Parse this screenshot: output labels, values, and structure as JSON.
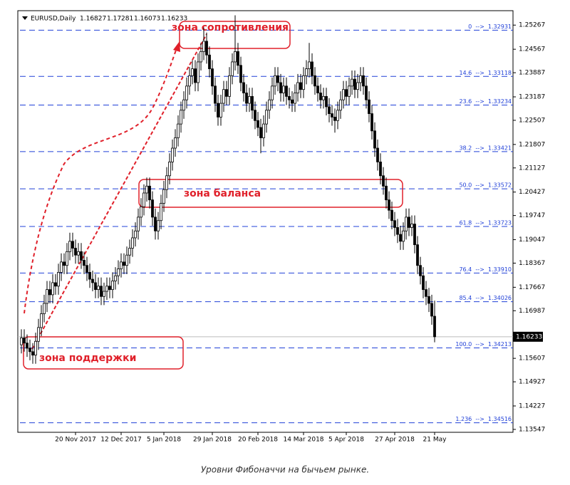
{
  "chart_data": {
    "type": "candlestick",
    "title": "EURUSD,Daily",
    "caption": "Уровни Фибоначчи на бычьем рынке.",
    "annotations": [
      "зона сопротивления",
      "зона баланса",
      "зона поддержки"
    ],
    "xlim": [
      -1.25,
      172.5
    ],
    "xticks": [
      {
        "value": 19,
        "label": "20 Nov 2017"
      },
      {
        "value": 35,
        "label": "12 Dec 2017"
      },
      {
        "value": 50,
        "label": "5 Jan 2018"
      },
      {
        "value": 67,
        "label": "29 Jan 2018"
      },
      {
        "value": 83,
        "label": "20 Feb 2018"
      },
      {
        "value": 99,
        "label": "14 Mar 2018"
      },
      {
        "value": 114,
        "label": "5 Apr 2018"
      },
      {
        "value": 131,
        "label": "27 Apr 2018"
      },
      {
        "value": 145,
        "label": "21 May"
      }
    ],
    "ylim": [
      1.13463,
      1.25685
    ],
    "yticks": [
      1.25267,
      1.24567,
      1.23887,
      1.23187,
      1.22507,
      1.21807,
      1.21127,
      1.20427,
      1.19747,
      1.19047,
      1.18367,
      1.17667,
      1.16987,
      1.15607,
      1.14927,
      1.14227,
      1.13547
    ],
    "fib_color": "#2040d8",
    "annotation_color": "#e0202a",
    "fib_levels": [
      {
        "value": 1.2512,
        "label": "0  -->  1.32931"
      },
      {
        "value": 1.2378,
        "label": "14.6  -->  1.33118"
      },
      {
        "value": 1.2295,
        "label": "23.6  -->  1.33234"
      },
      {
        "value": 1.216,
        "label": "38.2  -->  1.33421"
      },
      {
        "value": 1.2052,
        "label": "50.0  -->  1.33572"
      },
      {
        "value": 1.1943,
        "label": "61.8  -->  1.33723"
      },
      {
        "value": 1.1808,
        "label": "76.4  -->  1.33910"
      },
      {
        "value": 1.1725,
        "label": "85.4  -->  1.34026"
      },
      {
        "value": 1.1591,
        "label": "100.0  -->  1.34213"
      },
      {
        "value": 1.1374,
        "label": "1.236  -->  1.34516"
      }
    ],
    "open": [
      1.16,
      1.162,
      1.1605,
      1.159,
      1.158,
      1.157,
      1.161,
      1.165,
      1.169,
      1.172,
      1.176,
      1.1745,
      1.178,
      1.177,
      1.181,
      1.184,
      1.183,
      1.187,
      1.19,
      1.188,
      1.186,
      1.187,
      1.1845,
      1.183,
      1.181,
      1.179,
      1.178,
      1.176,
      1.177,
      1.174,
      1.1755,
      1.177,
      1.176,
      1.1785,
      1.18,
      1.182,
      1.184,
      1.183,
      1.186,
      1.188,
      1.191,
      1.193,
      1.197,
      1.2,
      1.204,
      1.206,
      1.202,
      1.197,
      1.193,
      1.196,
      1.201,
      1.205,
      1.209,
      1.213,
      1.217,
      1.22,
      1.224,
      1.228,
      1.231,
      1.235,
      1.238,
      1.24,
      1.236,
      1.242,
      1.245,
      1.248,
      1.244,
      1.24,
      1.235,
      1.23,
      1.226,
      1.23,
      1.234,
      1.232,
      1.238,
      1.242,
      1.245,
      1.241,
      1.236,
      1.233,
      1.23,
      1.232,
      1.228,
      1.225,
      1.223,
      1.22,
      1.224,
      1.228,
      1.231,
      1.235,
      1.238,
      1.236,
      1.233,
      1.235,
      1.232,
      1.231,
      1.23,
      1.233,
      1.236,
      1.234,
      1.238,
      1.24,
      1.242,
      1.238,
      1.235,
      1.233,
      1.231,
      1.232,
      1.229,
      1.227,
      1.226,
      1.225,
      1.228,
      1.231,
      1.234,
      1.232,
      1.235,
      1.237,
      1.234,
      1.236,
      1.238,
      1.235,
      1.231,
      1.227,
      1.222,
      1.217,
      1.213,
      1.209,
      1.206,
      1.202,
      1.199,
      1.196,
      1.194,
      1.192,
      1.19,
      1.193,
      1.197,
      1.194,
      1.195,
      1.189,
      1.183,
      1.18,
      1.176,
      1.174,
      1.172,
      1.16827
    ],
    "high": [
      1.1645,
      1.1645,
      1.163,
      1.1615,
      1.1605,
      1.1635,
      1.1675,
      1.1715,
      1.1745,
      1.1785,
      1.1785,
      1.1805,
      1.1805,
      1.1835,
      1.1865,
      1.1865,
      1.1895,
      1.1925,
      1.1925,
      1.1905,
      1.1895,
      1.1895,
      1.187,
      1.1855,
      1.1835,
      1.1815,
      1.1805,
      1.1795,
      1.1795,
      1.178,
      1.1795,
      1.1795,
      1.181,
      1.1825,
      1.1845,
      1.1865,
      1.1865,
      1.1885,
      1.1905,
      1.1935,
      1.1955,
      1.1995,
      1.2025,
      1.2065,
      1.2085,
      1.2085,
      1.2045,
      1.1995,
      1.1985,
      1.2035,
      1.2075,
      1.2115,
      1.2155,
      1.2195,
      1.2225,
      1.2265,
      1.2305,
      1.2335,
      1.2375,
      1.2405,
      1.2425,
      1.2425,
      1.2445,
      1.2475,
      1.252,
      1.2505,
      1.2465,
      1.2425,
      1.2375,
      1.2325,
      1.2325,
      1.2365,
      1.2365,
      1.2405,
      1.2445,
      1.2555,
      1.2475,
      1.2435,
      1.2385,
      1.2355,
      1.2345,
      1.2345,
      1.2305,
      1.2275,
      1.2255,
      1.2265,
      1.2305,
      1.2335,
      1.2375,
      1.2405,
      1.2405,
      1.2385,
      1.2375,
      1.2375,
      1.2345,
      1.2335,
      1.2355,
      1.2385,
      1.2385,
      1.2405,
      1.2425,
      1.2475,
      1.2445,
      1.2405,
      1.2375,
      1.2355,
      1.2345,
      1.2345,
      1.2315,
      1.2295,
      1.2285,
      1.2305,
      1.2335,
      1.2365,
      1.2365,
      1.2375,
      1.2395,
      1.2395,
      1.2385,
      1.2405,
      1.2405,
      1.2375,
      1.2335,
      1.2295,
      1.2245,
      1.2195,
      1.2155,
      1.2115,
      1.2085,
      1.2045,
      1.2015,
      1.1985,
      1.1965,
      1.1945,
      1.1955,
      1.1995,
      1.1995,
      1.1975,
      1.1975,
      1.1915,
      1.1855,
      1.1825,
      1.1785,
      1.1765,
      1.1745,
      1.17281
    ],
    "low": [
      1.1575,
      1.158,
      1.1565,
      1.1555,
      1.1545,
      1.1545,
      1.1585,
      1.1625,
      1.1665,
      1.1695,
      1.172,
      1.172,
      1.1745,
      1.1745,
      1.1785,
      1.1805,
      1.1805,
      1.1845,
      1.1855,
      1.1835,
      1.1835,
      1.182,
      1.1805,
      1.1785,
      1.1765,
      1.1755,
      1.1735,
      1.1735,
      1.1715,
      1.1715,
      1.173,
      1.1735,
      1.1735,
      1.176,
      1.1775,
      1.1795,
      1.1805,
      1.1805,
      1.1835,
      1.1855,
      1.1885,
      1.1905,
      1.1945,
      1.1975,
      1.2015,
      1.1995,
      1.1945,
      1.1905,
      1.1905,
      1.1935,
      1.1985,
      1.2025,
      1.2065,
      1.2105,
      1.2145,
      1.2175,
      1.2215,
      1.2255,
      1.2285,
      1.2325,
      1.2355,
      1.2335,
      1.2335,
      1.2395,
      1.2425,
      1.2415,
      1.2375,
      1.2325,
      1.2275,
      1.2235,
      1.2235,
      1.2275,
      1.2295,
      1.2295,
      1.2355,
      1.2395,
      1.2385,
      1.2335,
      1.2305,
      1.2275,
      1.2275,
      1.2255,
      1.2225,
      1.2205,
      1.2155,
      1.2175,
      1.2215,
      1.2255,
      1.2285,
      1.2325,
      1.2335,
      1.2305,
      1.2305,
      1.2295,
      1.2285,
      1.2275,
      1.2275,
      1.2305,
      1.2315,
      1.2315,
      1.2355,
      1.2375,
      1.2355,
      1.2325,
      1.2305,
      1.2285,
      1.2285,
      1.2265,
      1.2245,
      1.2235,
      1.2215,
      1.2225,
      1.2255,
      1.2285,
      1.2295,
      1.2295,
      1.2325,
      1.2315,
      1.2315,
      1.2335,
      1.2325,
      1.2285,
      1.2245,
      1.2195,
      1.2145,
      1.2105,
      1.2065,
      1.2035,
      1.1995,
      1.1965,
      1.1935,
      1.1915,
      1.1895,
      1.1875,
      1.1875,
      1.1905,
      1.1915,
      1.1915,
      1.1865,
      1.1805,
      1.1775,
      1.1735,
      1.1715,
      1.1695,
      1.1658,
      1.16073
    ],
    "close": [
      1.162,
      1.1605,
      1.159,
      1.158,
      1.157,
      1.161,
      1.165,
      1.169,
      1.172,
      1.176,
      1.1745,
      1.178,
      1.177,
      1.181,
      1.184,
      1.183,
      1.187,
      1.19,
      1.188,
      1.186,
      1.187,
      1.1845,
      1.183,
      1.181,
      1.179,
      1.178,
      1.176,
      1.177,
      1.174,
      1.1755,
      1.177,
      1.176,
      1.1785,
      1.18,
      1.182,
      1.184,
      1.183,
      1.186,
      1.188,
      1.191,
      1.193,
      1.197,
      1.2,
      1.204,
      1.206,
      1.202,
      1.197,
      1.193,
      1.196,
      1.201,
      1.205,
      1.209,
      1.213,
      1.217,
      1.22,
      1.224,
      1.228,
      1.231,
      1.235,
      1.238,
      1.24,
      1.236,
      1.242,
      1.245,
      1.248,
      1.244,
      1.24,
      1.235,
      1.23,
      1.226,
      1.23,
      1.234,
      1.232,
      1.238,
      1.242,
      1.245,
      1.241,
      1.236,
      1.233,
      1.23,
      1.232,
      1.228,
      1.225,
      1.223,
      1.22,
      1.224,
      1.228,
      1.231,
      1.235,
      1.238,
      1.236,
      1.233,
      1.235,
      1.232,
      1.231,
      1.23,
      1.233,
      1.236,
      1.234,
      1.238,
      1.24,
      1.242,
      1.238,
      1.235,
      1.233,
      1.231,
      1.232,
      1.229,
      1.227,
      1.226,
      1.225,
      1.228,
      1.231,
      1.234,
      1.232,
      1.235,
      1.237,
      1.234,
      1.236,
      1.238,
      1.235,
      1.231,
      1.227,
      1.222,
      1.217,
      1.213,
      1.209,
      1.206,
      1.202,
      1.199,
      1.196,
      1.194,
      1.192,
      1.19,
      1.193,
      1.197,
      1.194,
      1.195,
      1.189,
      1.183,
      1.18,
      1.176,
      1.174,
      1.172,
      1.1683,
      1.16233
    ]
  }
}
